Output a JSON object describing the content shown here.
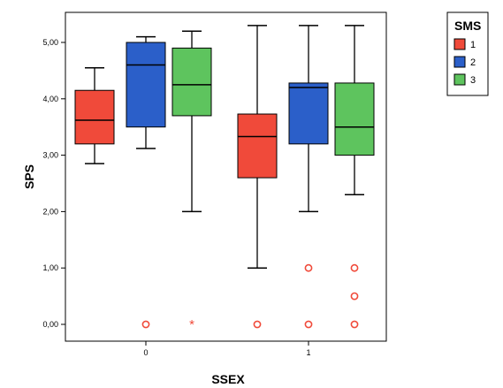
{
  "chart_data": {
    "type": "boxplot",
    "xlabel": "SSEX",
    "ylabel": "SPS",
    "ylim": [
      0,
      5.3
    ],
    "yticks": [
      "0,00",
      "1,00",
      "2,00",
      "3,00",
      "4,00",
      "5,00"
    ],
    "categories": [
      "0",
      "1"
    ],
    "legend": {
      "title": "SMS",
      "placement": "top-right"
    },
    "series": [
      {
        "name": "1",
        "color": "#f04a3a",
        "boxes": [
          {
            "category": "0",
            "min": 2.85,
            "q1": 3.2,
            "median": 3.62,
            "q3": 4.15,
            "max": 4.55,
            "outliers": [],
            "extremes": []
          },
          {
            "category": "1",
            "min": 1.0,
            "q1": 2.6,
            "median": 3.33,
            "q3": 3.73,
            "max": 5.3,
            "outliers": [
              0.0
            ],
            "extremes": []
          }
        ]
      },
      {
        "name": "2",
        "color": "#2b5fc9",
        "boxes": [
          {
            "category": "0",
            "min": 3.12,
            "q1": 3.5,
            "median": 4.6,
            "q3": 5.0,
            "max": 5.1,
            "outliers": [
              0.0
            ],
            "extremes": []
          },
          {
            "category": "1",
            "min": 2.0,
            "q1": 3.2,
            "median": 4.2,
            "q3": 4.28,
            "max": 5.3,
            "outliers": [
              1.0,
              0.0
            ],
            "extremes": []
          }
        ]
      },
      {
        "name": "3",
        "color": "#5ec45e",
        "boxes": [
          {
            "category": "0",
            "min": 2.0,
            "q1": 3.7,
            "median": 4.25,
            "q3": 4.9,
            "max": 5.2,
            "outliers": [],
            "extremes": [
              0.0
            ]
          },
          {
            "category": "1",
            "min": 2.3,
            "q1": 3.0,
            "median": 3.5,
            "q3": 4.28,
            "max": 5.3,
            "outliers": [
              1.0,
              0.5,
              0.0
            ],
            "extremes": []
          }
        ]
      }
    ],
    "outlier_color": "#f04a3a",
    "grid": false
  }
}
